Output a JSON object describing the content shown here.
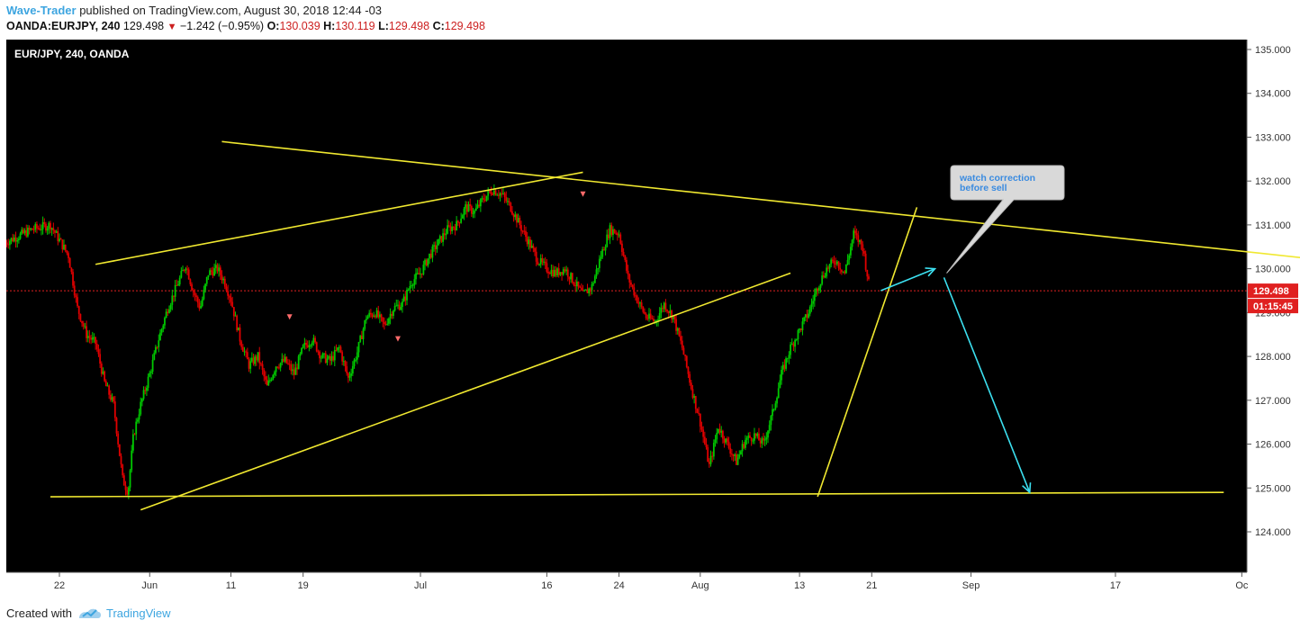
{
  "header": {
    "author": "Wave-Trader",
    "published": "published on TradingView.com, August 30, 2018 12:44 -03",
    "symbol": "OANDA:EURJPY, 240",
    "last": "129.498",
    "change": "−1.242 (−0.95%)",
    "o_label": "O:",
    "o_value": "130.039",
    "h_label": "H:",
    "h_value": "130.119",
    "l_label": "L:",
    "l_value": "129.498",
    "c_label": "C:",
    "c_value": "129.498"
  },
  "footer": {
    "created_with": "Created with",
    "brand": "TradingView"
  },
  "chart_data": {
    "type": "candlestick",
    "title": "EUR/JPY, 240, OANDA",
    "ylim": [
      123,
      135.2
    ],
    "y_ticks": [
      "124.000",
      "125.000",
      "126.000",
      "127.000",
      "128.000",
      "129.000",
      "130.000",
      "131.000",
      "132.000",
      "133.000",
      "134.000",
      "135.000"
    ],
    "y_tick_values": [
      124,
      125,
      126,
      127,
      128,
      129,
      130,
      131,
      132,
      133,
      134,
      135
    ],
    "x_ticks": [
      "22",
      "Jun",
      "11",
      "19",
      "Jul",
      "16",
      "24",
      "Aug",
      "13",
      "21",
      "Sep",
      "17",
      "Oc"
    ],
    "x_tick_days": [
      0,
      10,
      19,
      27,
      40,
      54,
      62,
      71,
      82,
      90,
      101,
      117,
      131
    ],
    "current_price": "129.498",
    "countdown": "01:15:45",
    "colors": {
      "up": "#00c800",
      "down": "#e00000",
      "trend": "#f0e830",
      "arrow": "#3ce0f0",
      "price_line": "#e02020"
    },
    "price_path": [
      [
        -6,
        130.6
      ],
      [
        -3,
        130.9
      ],
      [
        -1,
        131.0
      ],
      [
        1,
        130.3
      ],
      [
        2,
        129.1
      ],
      [
        3,
        128.5
      ],
      [
        4,
        128.3
      ],
      [
        5,
        127.4
      ],
      [
        6,
        126.9
      ],
      [
        7,
        125.2
      ],
      [
        7.6,
        124.9
      ],
      [
        8.2,
        126.2
      ],
      [
        9,
        126.9
      ],
      [
        10,
        127.6
      ],
      [
        11,
        128.4
      ],
      [
        12,
        129.1
      ],
      [
        13,
        129.6
      ],
      [
        14,
        130.1
      ],
      [
        14.8,
        129.5
      ],
      [
        15.6,
        129.1
      ],
      [
        16.5,
        129.9
      ],
      [
        17.5,
        130.0
      ],
      [
        18.3,
        129.7
      ],
      [
        19,
        129.3
      ],
      [
        20,
        128.4
      ],
      [
        21,
        127.8
      ],
      [
        22,
        128.0
      ],
      [
        23,
        127.3
      ],
      [
        24,
        127.8
      ],
      [
        25,
        127.9
      ],
      [
        26,
        127.6
      ],
      [
        27,
        128.2
      ],
      [
        28,
        128.4
      ],
      [
        29,
        128.0
      ],
      [
        30,
        127.9
      ],
      [
        31,
        128.2
      ],
      [
        32,
        127.5
      ],
      [
        33,
        128.1
      ],
      [
        34,
        128.9
      ],
      [
        35,
        129.0
      ],
      [
        36,
        128.7
      ],
      [
        37,
        129.1
      ],
      [
        38,
        129.2
      ],
      [
        39,
        129.7
      ],
      [
        40,
        129.9
      ],
      [
        41,
        130.3
      ],
      [
        42,
        130.6
      ],
      [
        43,
        130.9
      ],
      [
        44,
        131.0
      ],
      [
        45,
        131.4
      ],
      [
        46,
        131.3
      ],
      [
        47,
        131.6
      ],
      [
        48,
        131.8
      ],
      [
        49,
        131.7
      ],
      [
        50,
        131.4
      ],
      [
        51,
        131.0
      ],
      [
        52,
        130.6
      ],
      [
        53,
        130.2
      ],
      [
        54,
        130.0
      ],
      [
        55,
        129.9
      ],
      [
        56,
        130.0
      ],
      [
        57,
        129.7
      ],
      [
        58,
        129.4
      ],
      [
        59,
        129.6
      ],
      [
        60,
        130.3
      ],
      [
        61,
        130.9
      ],
      [
        62,
        130.8
      ],
      [
        63,
        129.8
      ],
      [
        64,
        129.3
      ],
      [
        65,
        128.9
      ],
      [
        66,
        128.8
      ],
      [
        67,
        129.2
      ],
      [
        68,
        128.9
      ],
      [
        69,
        128.2
      ],
      [
        70,
        127.3
      ],
      [
        71,
        126.5
      ],
      [
        72,
        125.5
      ],
      [
        73,
        126.4
      ],
      [
        74,
        126.0
      ],
      [
        75,
        125.6
      ],
      [
        76,
        126.1
      ],
      [
        77,
        126.2
      ],
      [
        78,
        126.0
      ],
      [
        79,
        126.7
      ],
      [
        80,
        127.6
      ],
      [
        81,
        128.2
      ],
      [
        82,
        128.6
      ],
      [
        83,
        129.0
      ],
      [
        84,
        129.6
      ],
      [
        85,
        130.0
      ],
      [
        86,
        130.2
      ],
      [
        87,
        129.9
      ],
      [
        88,
        130.8
      ],
      [
        89,
        130.5
      ],
      [
        89.8,
        129.5
      ]
    ],
    "trendlines": [
      {
        "from": [
          18,
          132.9
        ],
        "to": [
          140,
          130.2
        ]
      },
      {
        "from": [
          9,
          124.5
        ],
        "to": [
          81,
          129.9
        ]
      },
      {
        "from": [
          4,
          130.1
        ],
        "to": [
          58,
          132.2
        ]
      },
      {
        "from": [
          -1,
          124.8
        ],
        "to": [
          129,
          124.9
        ]
      },
      {
        "from": [
          84,
          124.8
        ],
        "to": [
          95,
          131.4
        ]
      }
    ],
    "arrows": [
      {
        "from": [
          91,
          129.5
        ],
        "to": [
          97,
          130.0
        ]
      },
      {
        "from": [
          98,
          129.8
        ],
        "to": [
          107.5,
          124.9
        ]
      }
    ],
    "signal_markers": [
      [
        58,
        131.7
      ],
      [
        25.5,
        128.9
      ],
      [
        37.5,
        128.4
      ]
    ],
    "callout": {
      "line1": "watch correction",
      "line2": "before sell"
    }
  }
}
